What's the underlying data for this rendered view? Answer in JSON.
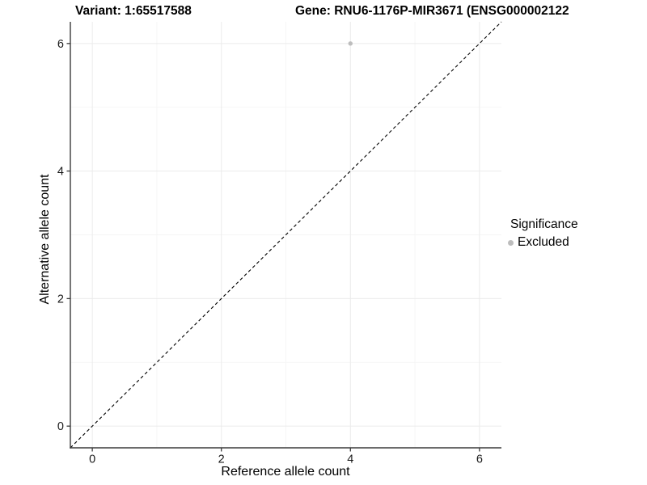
{
  "header": {
    "variant_title": "Variant: 1:65517588",
    "gene_title": "Gene: RNU6-1176P-MIR3671 (ENSG000002122"
  },
  "colors": {
    "background": "#ffffff",
    "grid_major": "#ebebeb",
    "grid_minor": "#f5f5f5",
    "axis_line": "#3c3c3c",
    "tick_text": "#1a1a1a",
    "identity_line": "#000000",
    "excluded_point": "#bdbdbd"
  },
  "chart_data": {
    "type": "scatter",
    "title_left": "Variant: 1:65517588",
    "title_right": "Gene: RNU6-1176P-MIR3671 (ENSG000002122",
    "xlabel": "Reference allele count",
    "ylabel": "Alternative allele count",
    "xlim": [
      -0.34,
      6.34
    ],
    "ylim": [
      -0.34,
      6.34
    ],
    "x_ticks": [
      0,
      2,
      4,
      6
    ],
    "y_ticks": [
      0,
      2,
      4,
      6
    ],
    "x_minor_ticks": [
      1,
      3,
      5
    ],
    "y_minor_ticks": [
      1,
      3,
      5
    ],
    "grid": "on",
    "legend_position": "right",
    "series": [
      {
        "name": "Excluded",
        "color": "#bdbdbd",
        "points": [
          {
            "x": 4,
            "y": 6
          }
        ]
      }
    ],
    "reference_line": {
      "type": "identity",
      "slope": 1,
      "intercept": 0,
      "style": "dashed",
      "color": "#000000"
    },
    "legend": {
      "title": "Significance",
      "entries": [
        {
          "label": "Excluded",
          "color": "#bdbdbd"
        }
      ]
    }
  }
}
